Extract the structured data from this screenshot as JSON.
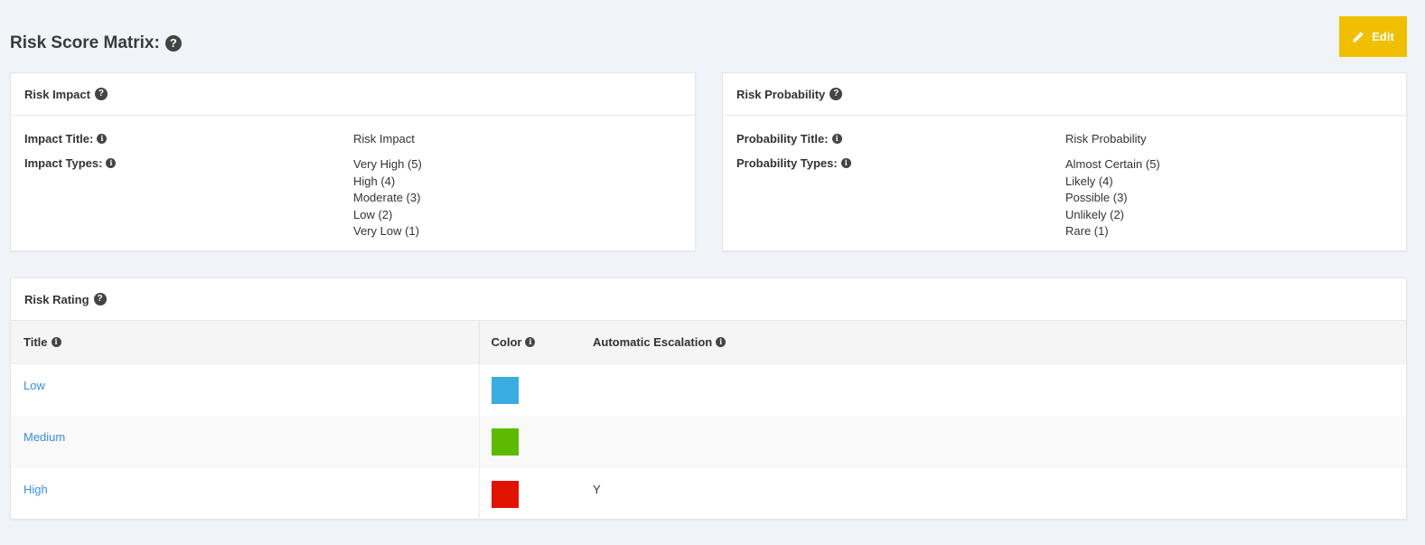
{
  "header": {
    "title": "Risk Score Matrix:",
    "help_icon": "question-circle-icon"
  },
  "toolbar": {
    "edit_label": "Edit",
    "edit_icon": "pencil-icon",
    "edit_color": "#f0c000"
  },
  "impact": {
    "panel_title": "Risk Impact",
    "title_label": "Impact Title:",
    "title_value": "Risk Impact",
    "types_label": "Impact Types:",
    "types": [
      "Very High (5)",
      "High (4)",
      "Moderate (3)",
      "Low (2)",
      "Very Low (1)"
    ]
  },
  "probability": {
    "panel_title": "Risk Probability",
    "title_label": "Probability Title:",
    "title_value": "Risk Probability",
    "types_label": "Probability Types:",
    "types": [
      "Almost Certain (5)",
      "Likely (4)",
      "Possible (3)",
      "Unlikely (2)",
      "Rare (1)"
    ]
  },
  "rating": {
    "panel_title": "Risk Rating",
    "columns": {
      "title": "Title",
      "color": "Color",
      "escalation": "Automatic Escalation"
    },
    "rows": [
      {
        "title": "Low",
        "color": "#3aace0",
        "escalation": ""
      },
      {
        "title": "Medium",
        "color": "#5cbb00",
        "escalation": ""
      },
      {
        "title": "High",
        "color": "#e01200",
        "escalation": "Y"
      }
    ]
  },
  "colors": {
    "link": "#3a8ee6",
    "background": "#f0f3f7"
  }
}
